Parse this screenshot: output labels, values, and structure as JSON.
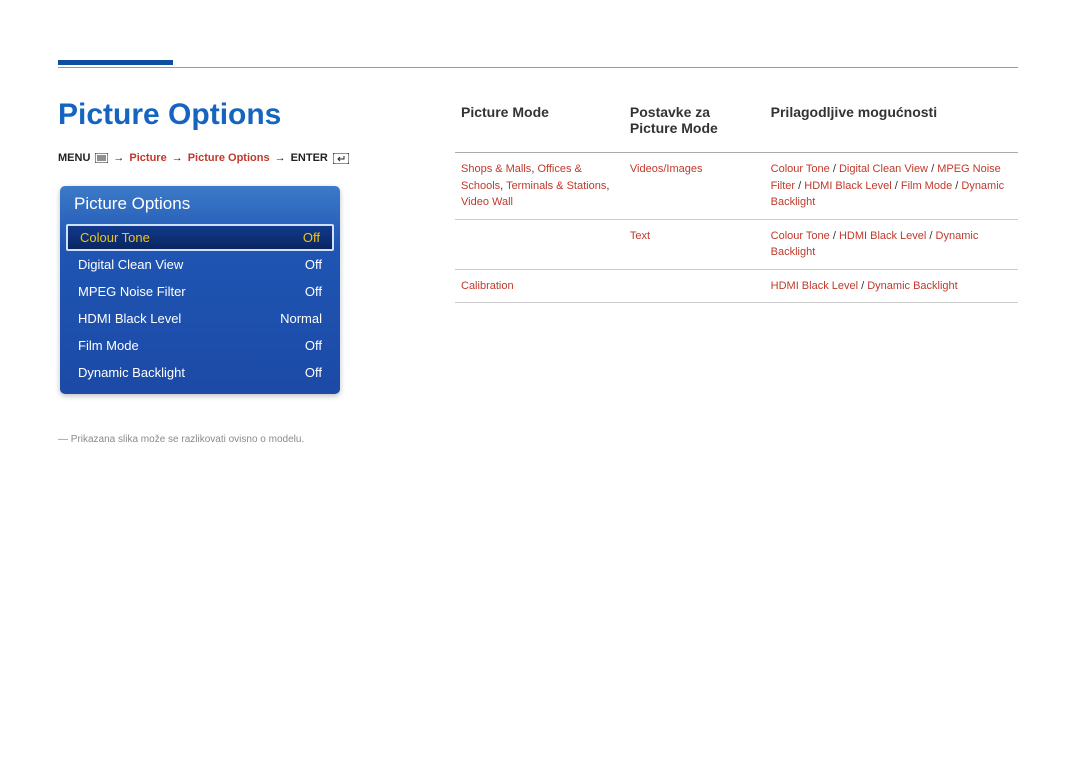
{
  "colors": {
    "brand_blue": "#1565c0",
    "accent_red": "#c0392b",
    "panel_grad_top": "#3c7ac8",
    "panel_grad_mid": "#1f55b3",
    "panel_grad_bot": "#1c4aa6",
    "selected_bg_top": "#113a8c",
    "selected_bg_bot": "#0a2560",
    "selected_text": "#f1c40f",
    "rule_gray": "#999999",
    "text_gray": "#8a8a8a"
  },
  "page": {
    "title": "Picture Options"
  },
  "breadcrumb": {
    "menu_label": "MENU",
    "seg1": "Picture",
    "seg2": "Picture Options",
    "enter_label": "ENTER",
    "arrow": "→"
  },
  "menu_panel": {
    "title": "Picture Options",
    "rows": [
      {
        "label": "Colour Tone",
        "value": "Off",
        "selected": true
      },
      {
        "label": "Digital Clean View",
        "value": "Off",
        "selected": false
      },
      {
        "label": "MPEG Noise Filter",
        "value": "Off",
        "selected": false
      },
      {
        "label": "HDMI Black Level",
        "value": "Normal",
        "selected": false
      },
      {
        "label": "Film Mode",
        "value": "Off",
        "selected": false
      },
      {
        "label": "Dynamic Backlight",
        "value": "Off",
        "selected": false
      }
    ]
  },
  "footnote": "― Prikazana slika može se razlikovati ovisno o modelu.",
  "table": {
    "headers": {
      "col1": "Picture Mode",
      "col2_line1": "Postavke za",
      "col2_line2": "Picture Mode",
      "col3": "Prilagodljive mogućnosti"
    },
    "rows": [
      {
        "col1_parts": [
          "Shops & Malls",
          ", ",
          "Offices & Schools",
          ", ",
          "Terminals & Stations",
          ", ",
          "Video Wall"
        ],
        "col2": "Videos/Images",
        "col3_parts": [
          "Colour Tone",
          " / ",
          "Digital Clean View",
          " / ",
          "MPEG Noise Filter",
          " / ",
          "HDMI Black Level",
          " / ",
          "Film Mode",
          " / ",
          "Dynamic Backlight"
        ]
      },
      {
        "col1_parts": [],
        "col2": "Text",
        "col3_parts": [
          "Colour Tone",
          " / ",
          "HDMI Black Level",
          " / ",
          "Dynamic Backlight"
        ]
      },
      {
        "col1_parts": [
          "Calibration"
        ],
        "col2": "",
        "col3_parts": [
          "HDMI Black Level",
          " / ",
          "Dynamic Backlight"
        ]
      }
    ]
  }
}
